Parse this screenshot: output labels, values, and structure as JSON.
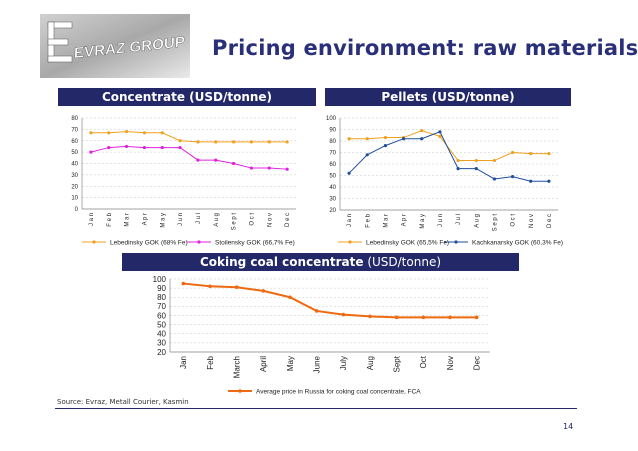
{
  "title": "Pricing environment: raw materials",
  "logo": {
    "text": "EVRAZ GROUP"
  },
  "panels": {
    "concentrate": "Concentrate (USD/tonne)",
    "pellets": "Pellets (USD/tonne)",
    "coking_bold": "Coking coal  concentrate",
    "coking_normal": " (USD/tonne)"
  },
  "source": "Source: Evraz, Metall Courier, Kasmin",
  "page_number": "14",
  "colors": {
    "navy": "#222868",
    "orange": "#f0a020",
    "magenta": "#e020e0",
    "blue": "#1f4e9a",
    "deep_orange": "#ee6a10"
  },
  "chart_data": [
    {
      "type": "line",
      "title": "Concentrate (USD/tonne)",
      "categories": [
        "Jan",
        "Feb",
        "Mar",
        "Apr",
        "May",
        "Jun",
        "Jul",
        "Aug",
        "Sept",
        "Oct",
        "Nov",
        "Dec"
      ],
      "series": [
        {
          "name": "Lebedinsky GOK (68% Fe)",
          "color": "#f0a020",
          "values": [
            67,
            67,
            68,
            67,
            67,
            60,
            59,
            59,
            59,
            59,
            59,
            59
          ]
        },
        {
          "name": "Stoilensky GOK (66,7% Fe)",
          "color": "#e020e0",
          "values": [
            50,
            54,
            55,
            54,
            54,
            54,
            43,
            43,
            40,
            36,
            36,
            35
          ]
        }
      ],
      "ylim": [
        0,
        80
      ],
      "yticks": [
        0,
        10,
        20,
        30,
        40,
        50,
        60,
        70,
        80
      ],
      "grid": true,
      "legend": "bottom"
    },
    {
      "type": "line",
      "title": "Pellets (USD/tonne)",
      "categories": [
        "Jan",
        "Feb",
        "Mar",
        "Apr",
        "May",
        "Jun",
        "Jul",
        "Aug",
        "Sept",
        "Oct",
        "Nov",
        "Dec"
      ],
      "series": [
        {
          "name": "Lebedinsky GOK (65,5% Fe)",
          "color": "#f0a020",
          "values": [
            82,
            82,
            83,
            83,
            89,
            84,
            63,
            63,
            63,
            70,
            69,
            69
          ]
        },
        {
          "name": "Kachkanarsky GOK (60,3% Fe)",
          "color": "#1f4e9a",
          "values": [
            52,
            68,
            76,
            82,
            82,
            88,
            56,
            56,
            47,
            49,
            45,
            45
          ]
        }
      ],
      "ylim": [
        20,
        100
      ],
      "yticks": [
        20,
        30,
        40,
        50,
        60,
        70,
        80,
        90,
        100
      ],
      "grid": true,
      "legend": "bottom"
    },
    {
      "type": "line",
      "title": "Coking coal  concentrate (USD/tonne)",
      "categories": [
        "Jan",
        "Feb",
        "March",
        "April",
        "May",
        "June",
        "July",
        "Aug",
        "Sept",
        "Oct",
        "Nov",
        "Dec"
      ],
      "series": [
        {
          "name": "Average price in Russia for coking coal concentrate, FCA",
          "color": "#ee6a10",
          "values": [
            95,
            92,
            91,
            87,
            80,
            65,
            61,
            59,
            58,
            58,
            58,
            58
          ]
        }
      ],
      "ylim": [
        20,
        100
      ],
      "yticks": [
        20,
        30,
        40,
        50,
        60,
        70,
        80,
        90,
        100
      ],
      "grid": true,
      "legend": "bottom"
    }
  ]
}
